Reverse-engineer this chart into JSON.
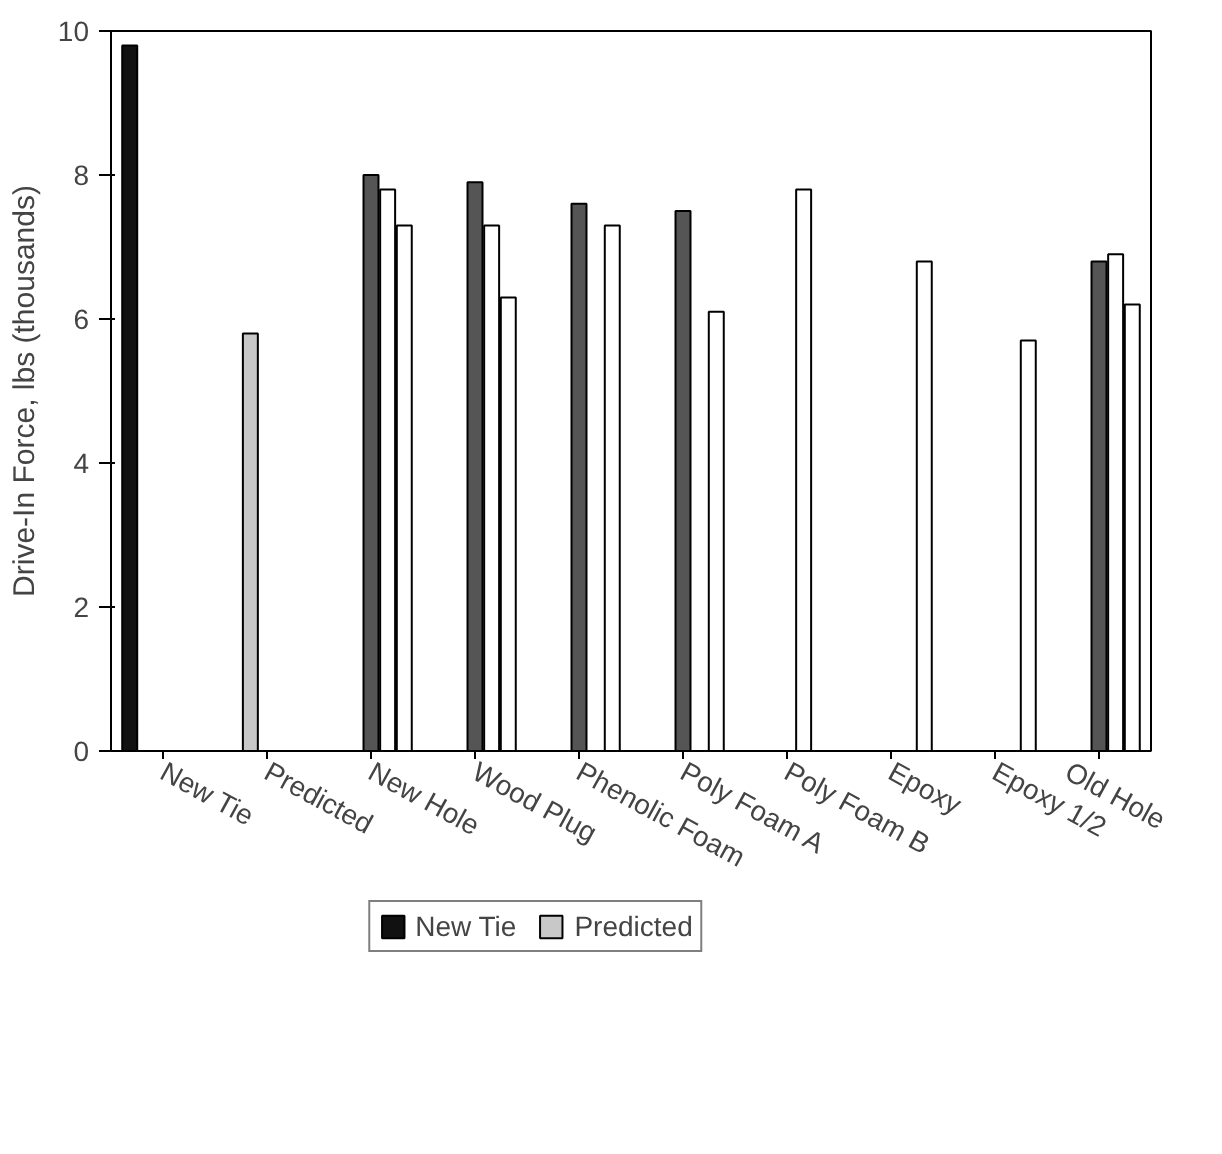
{
  "chart_data": {
    "type": "bar",
    "ylabel": "Drive-In Force, lbs (thousands)",
    "categories": [
      "New Tie",
      "Predicted",
      "New Hole",
      "Wood Plug",
      "Phenolic Foam",
      "Poly Foam A",
      "Poly Foam B",
      "Epoxy",
      "Epoxy 1/2",
      "Old Hole"
    ],
    "series": [
      {
        "name": "New Tie",
        "color": "#111111",
        "values": [
          9.8,
          null,
          null,
          null,
          null,
          null,
          null,
          null,
          null,
          null
        ]
      },
      {
        "name": "Predicted",
        "color": "#c8c8c8",
        "values": [
          null,
          5.8,
          null,
          null,
          null,
          null,
          null,
          null,
          null,
          null
        ]
      },
      {
        "color": "#555555",
        "values": [
          null,
          null,
          8.0,
          7.9,
          7.6,
          7.5,
          null,
          null,
          null,
          6.8
        ]
      },
      {
        "color": "#ffffff",
        "values": [
          null,
          null,
          7.8,
          7.3,
          null,
          null,
          7.8,
          null,
          null,
          6.9
        ]
      },
      {
        "color": "#ffffff",
        "values": [
          null,
          null,
          7.3,
          6.3,
          7.3,
          6.1,
          null,
          6.8,
          5.7,
          6.2
        ]
      }
    ],
    "ylim": [
      0,
      10
    ],
    "yticks": [
      0,
      2,
      4,
      6,
      8,
      10
    ],
    "legend": "bottom"
  }
}
